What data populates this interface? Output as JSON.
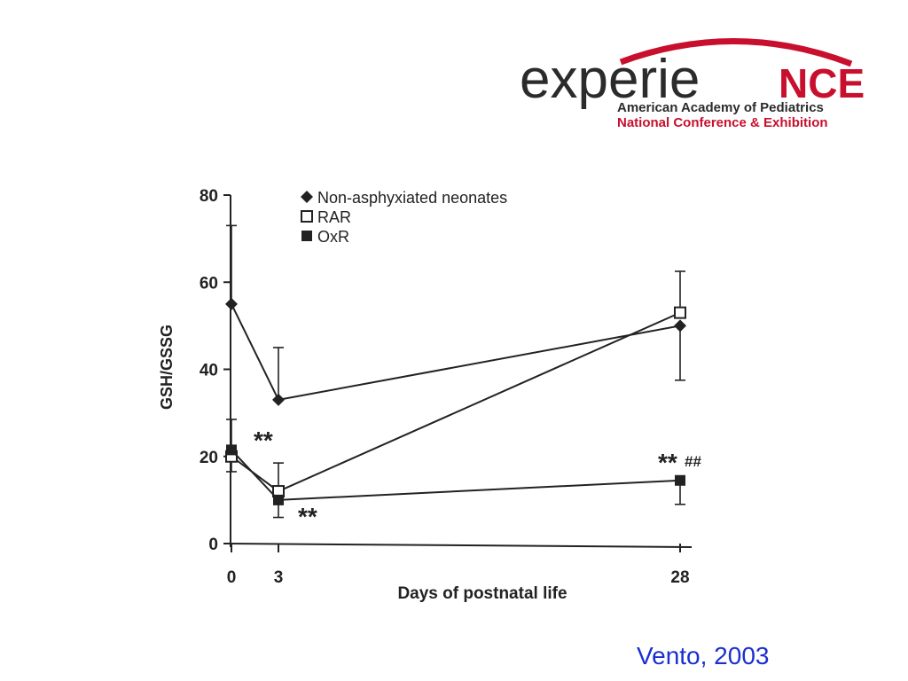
{
  "logo": {
    "word_main": "experie",
    "word_accent": "NCE",
    "line1": "American Academy of Pediatrics",
    "line2": "National Conference & Exhibition",
    "colors": {
      "dark": "#2b2b2b",
      "accent": "#c8102e",
      "arc": "#c8102e"
    }
  },
  "chart_data": {
    "type": "line",
    "title": "",
    "xlabel": "Days of postnatal life",
    "ylabel": "GSH/GSSG",
    "x_ticks": [
      "0",
      "3",
      "28"
    ],
    "y_ticks": [
      "0",
      "20",
      "40",
      "60",
      "80"
    ],
    "ylim": [
      0,
      80
    ],
    "grid": false,
    "legend_position": "top-left",
    "series": [
      {
        "name": "Non-asphyxiated neonates",
        "marker": "filled-diamond",
        "x": [
          0,
          3,
          28
        ],
        "y": [
          55,
          33,
          50
        ],
        "err_upper": [
          73,
          45,
          50
        ],
        "err_lower": [
          55,
          33,
          37.5
        ]
      },
      {
        "name": "RAR",
        "marker": "open-square",
        "x": [
          0,
          3,
          28
        ],
        "y": [
          20,
          12,
          53
        ],
        "err_upper": [
          20,
          18.5,
          62.5
        ],
        "err_lower": [
          16.5,
          12,
          53
        ]
      },
      {
        "name": "OxR",
        "marker": "filled-square",
        "x": [
          0,
          3,
          28
        ],
        "y": [
          21.5,
          10,
          14.5
        ],
        "err_upper": [
          28.5,
          10,
          14.5
        ],
        "err_lower": [
          21.5,
          6,
          9
        ]
      }
    ],
    "annotations": [
      {
        "text": "**",
        "x": 3,
        "y": 23,
        "anchor": "left-of"
      },
      {
        "text": "**",
        "x": 3,
        "y": 6.5,
        "anchor": "right-of"
      },
      {
        "text": "**",
        "x": 28,
        "y": 18.5,
        "anchor": "center-left"
      },
      {
        "text": "##",
        "x": 28,
        "y": 18.5,
        "anchor": "center-right"
      }
    ]
  },
  "citation": "Vento, 2003"
}
